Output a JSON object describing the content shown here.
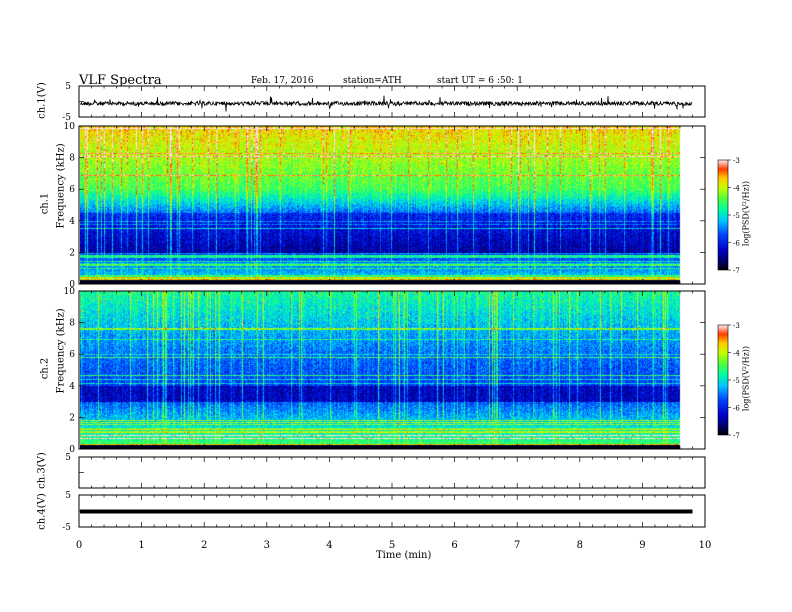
{
  "header": {
    "title": "VLF Spectra",
    "date": "Feb. 17, 2016",
    "station": "station=ATH",
    "start": "start UT =  6 :50: 1"
  },
  "chart_data": [
    {
      "type": "line",
      "panel": "ch1-waveform",
      "ylabel": "ch.1(V)",
      "ylim": [
        -5,
        5
      ],
      "yticks": [
        "5",
        "-5"
      ],
      "xlim": [
        0,
        10
      ]
    },
    {
      "type": "heatmap",
      "panel": "ch1-spectrogram",
      "ylabel_top": "ch.1",
      "ylabel": "Frequency (kHz)",
      "ylim": [
        0,
        10
      ],
      "yticks": [
        "0",
        "2",
        "4",
        "6",
        "8",
        "10"
      ],
      "xlim": [
        0,
        9.8
      ],
      "colorbar": {
        "label": "log(PSD(V²/Hz))",
        "range": [
          -7,
          -3
        ],
        "ticks": [
          "-3",
          "-4",
          "-5",
          "-6",
          "-7"
        ],
        "colormap": "jet"
      }
    },
    {
      "type": "heatmap",
      "panel": "ch2-spectrogram",
      "ylabel_top": "ch.2",
      "ylabel": "Frequency (kHz)",
      "ylim": [
        0,
        10
      ],
      "yticks": [
        "0",
        "2",
        "4",
        "6",
        "8",
        "10"
      ],
      "xlim": [
        0,
        9.8
      ],
      "colorbar": {
        "label": "log(PSD(V²/Hz))",
        "range": [
          -7,
          -3
        ],
        "ticks": [
          "-3",
          "-4",
          "-5",
          "-6",
          "-7"
        ],
        "colormap": "jet"
      }
    },
    {
      "type": "line",
      "panel": "ch3-waveform",
      "ylabel": "ch.3(V)",
      "ylim": [
        -5,
        5
      ],
      "yticks": [
        "5",
        ""
      ],
      "xlim": [
        0,
        10
      ]
    },
    {
      "type": "line",
      "panel": "ch4-waveform",
      "ylabel": "ch.4(V)",
      "ylim": [
        -5,
        5
      ],
      "yticks": [
        "5",
        "-5"
      ],
      "xlim": [
        0,
        10
      ]
    }
  ],
  "xaxis": {
    "label": "Time (min)",
    "ticks": [
      "0",
      "1",
      "2",
      "3",
      "4",
      "5",
      "6",
      "7",
      "8",
      "9",
      "10"
    ]
  }
}
